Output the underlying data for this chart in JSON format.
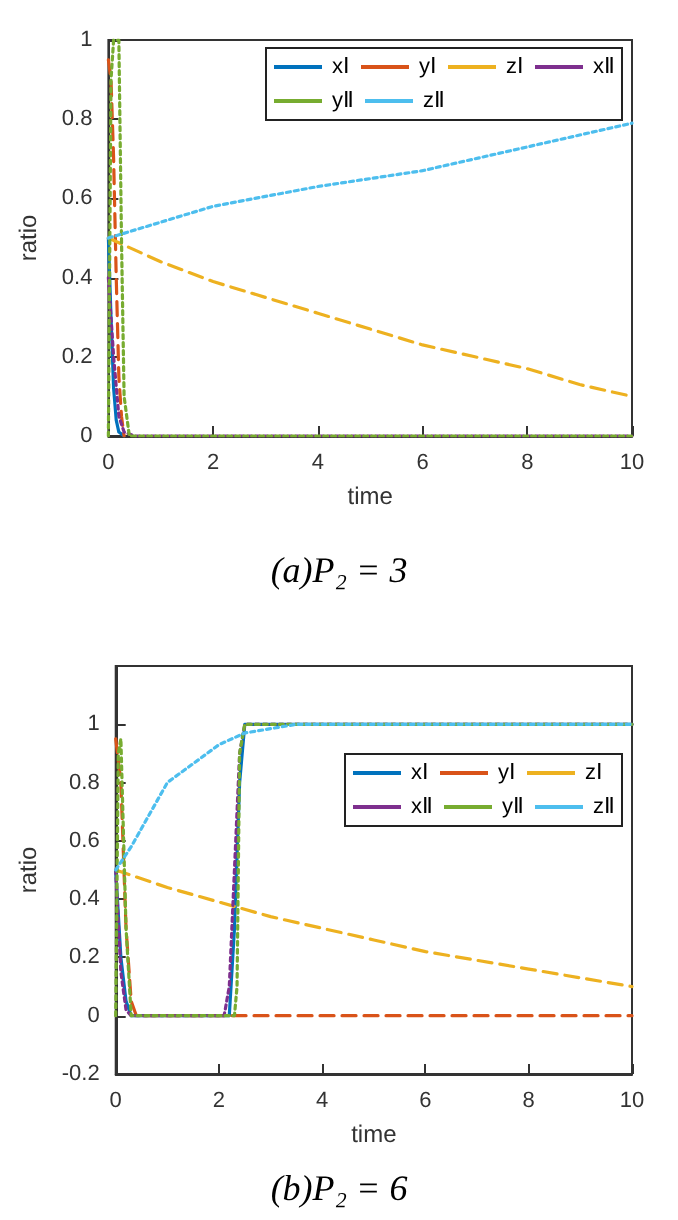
{
  "chart_data": [
    {
      "type": "line",
      "title": "(a)P₂ = 3",
      "xlabel": "time",
      "ylabel": "ratio",
      "xlim": [
        0,
        10
      ],
      "xticks": [
        0,
        2,
        4,
        6,
        8,
        10
      ],
      "ylim": [
        0,
        1
      ],
      "yticks": [
        0,
        0.2,
        0.4,
        0.6,
        0.8,
        1
      ],
      "grid": false,
      "legend": "top right",
      "marker": "none",
      "series": [
        {
          "name": "xⅠ",
          "color": "#0072bd",
          "line_style": "solid",
          "x": [
            0,
            0.05,
            0.1,
            0.15,
            0.2,
            0.3
          ],
          "values": [
            0.5,
            0.3,
            0.12,
            0.04,
            0.01,
            0
          ]
        },
        {
          "name": "yⅠ",
          "color": "#d95319",
          "line_style": "dashed",
          "x": [
            0,
            0.05,
            0.1,
            0.15,
            0.2,
            0.25,
            0.3
          ],
          "values": [
            0.95,
            0.9,
            0.7,
            0.4,
            0.15,
            0.05,
            0
          ]
        },
        {
          "name": "zⅠ",
          "color": "#edb120",
          "line_style": "dashed",
          "x": [
            0,
            1,
            2,
            3,
            4,
            5,
            6,
            7,
            8,
            9,
            10
          ],
          "values": [
            0.5,
            0.44,
            0.39,
            0.35,
            0.31,
            0.27,
            0.23,
            0.2,
            0.17,
            0.13,
            0.1
          ]
        },
        {
          "name": "xⅡ",
          "color": "#7e2f8e",
          "line_style": "dotted",
          "x": [
            0,
            0.1,
            0.2,
            0.3,
            0.5,
            10
          ],
          "values": [
            0.4,
            0.2,
            0.05,
            0.01,
            0,
            0
          ]
        },
        {
          "name": "yⅡ",
          "color": "#77ac30",
          "line_style": "dotted",
          "x": [
            0,
            0.05,
            0.1,
            0.2,
            0.25,
            0.3,
            0.4,
            10
          ],
          "values": [
            0,
            0.9,
            1,
            1,
            0.5,
            0.1,
            0,
            0
          ]
        },
        {
          "name": "zⅡ",
          "color": "#4dbeee",
          "line_style": "dotted",
          "x": [
            0,
            2,
            4,
            6,
            8,
            10
          ],
          "values": [
            0.5,
            0.58,
            0.63,
            0.67,
            0.73,
            0.79
          ]
        }
      ]
    },
    {
      "type": "line",
      "title": "(b)P₂ = 6",
      "xlabel": "time",
      "ylabel": "ratio",
      "xlim": [
        0,
        10
      ],
      "xticks": [
        0,
        2,
        4,
        6,
        8,
        10
      ],
      "ylim": [
        -0.2,
        1.2
      ],
      "yticks": [
        -0.2,
        0,
        0.2,
        0.4,
        0.6,
        0.8,
        1
      ],
      "grid": false,
      "legend": "right",
      "marker": "none",
      "series": [
        {
          "name": "xⅠ",
          "color": "#0072bd",
          "line_style": "solid",
          "x": [
            0,
            0.1,
            0.2,
            0.3,
            2.2,
            2.3,
            2.4,
            2.5,
            10
          ],
          "values": [
            0.5,
            0.2,
            0.05,
            0,
            0,
            0.3,
            0.8,
            1,
            1
          ]
        },
        {
          "name": "yⅠ",
          "color": "#d95319",
          "line_style": "dashed",
          "x": [
            0,
            0.1,
            0.2,
            0.3,
            0.4,
            10
          ],
          "values": [
            0.95,
            0.8,
            0.3,
            0.05,
            0,
            0
          ]
        },
        {
          "name": "zⅠ",
          "color": "#edb120",
          "line_style": "dashed",
          "x": [
            0,
            1,
            2,
            3,
            4,
            5,
            6,
            7,
            8,
            9,
            10
          ],
          "values": [
            0.5,
            0.44,
            0.39,
            0.34,
            0.3,
            0.26,
            0.22,
            0.19,
            0.16,
            0.13,
            0.1
          ]
        },
        {
          "name": "xⅡ",
          "color": "#7e2f8e",
          "line_style": "dotted",
          "x": [
            0,
            0.1,
            0.2,
            0.3,
            2.1,
            2.2,
            2.3,
            2.4,
            2.5,
            10
          ],
          "values": [
            0.5,
            0.15,
            0.02,
            0,
            0,
            0.1,
            0.5,
            0.9,
            1,
            1
          ]
        },
        {
          "name": "yⅡ",
          "color": "#77ac30",
          "line_style": "dotted",
          "x": [
            0,
            0.05,
            0.1,
            0.2,
            0.3,
            2.3,
            2.35,
            2.4,
            2.5,
            10
          ],
          "values": [
            0,
            0.9,
            0.95,
            0.3,
            0,
            0,
            0.1,
            0.9,
            1,
            1
          ]
        },
        {
          "name": "zⅡ",
          "color": "#4dbeee",
          "line_style": "dotted",
          "x": [
            0,
            0.3,
            1,
            2,
            2.5,
            3.5,
            10
          ],
          "values": [
            0.5,
            0.58,
            0.8,
            0.93,
            0.97,
            1,
            1
          ]
        }
      ]
    }
  ]
}
